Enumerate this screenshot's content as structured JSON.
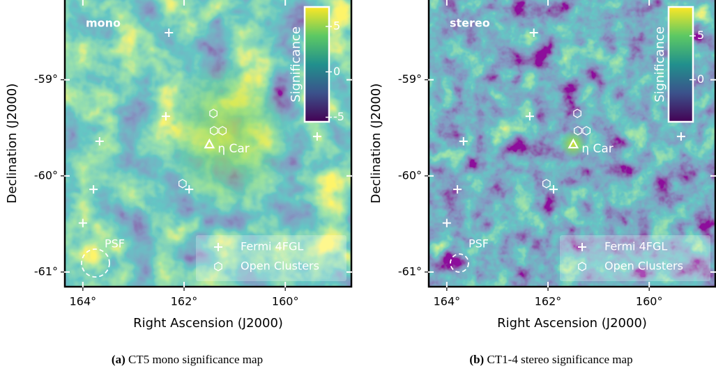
{
  "chart_data": [
    {
      "type": "scatter",
      "panel_label": "mono",
      "xlabel": "Right Ascension (J2000)",
      "ylabel": "Declination (J2000)",
      "xlim": [
        164.37,
        158.68
      ],
      "ylim": [
        -61.16,
        -58.17
      ],
      "xticks": [
        {
          "value": 164,
          "label": "164°"
        },
        {
          "value": 162,
          "label": "162°"
        },
        {
          "value": 160,
          "label": "160°"
        }
      ],
      "yticks": [
        {
          "value": -61,
          "label": "-61°"
        },
        {
          "value": -60,
          "label": "-60°"
        },
        {
          "value": -59,
          "label": "-59°"
        }
      ],
      "series": [
        {
          "name": "Fermi 4FGL",
          "marker": "plus",
          "color": "#ffffff",
          "x": [
            162.3,
            162.36,
            163.67,
            163.79,
            164.0,
            161.9,
            159.37
          ],
          "y": [
            -58.51,
            -59.38,
            -59.64,
            -60.14,
            -60.49,
            -60.14,
            -59.59
          ]
        },
        {
          "name": "Open Clusters",
          "marker": "hexagon",
          "color": "#ffffff",
          "x": [
            161.42,
            161.41,
            161.24,
            162.03
          ],
          "y": [
            -59.35,
            -59.53,
            -59.53,
            -60.08
          ]
        }
      ],
      "source": {
        "label": "η Car",
        "marker": "triangle",
        "color": "#ffffff",
        "x": 161.5,
        "y": -59.67
      },
      "psf_label": "PSF",
      "legend": "lower right",
      "colorbar": {
        "label": "Significance",
        "lim": [
          -5.5,
          7.15
        ],
        "ticks": [
          -5,
          0,
          5
        ]
      },
      "caption_label": "(a)",
      "caption": "CT5 mono significance map"
    },
    {
      "type": "scatter",
      "panel_label": "stereo",
      "xlabel": "Right Ascension (J2000)",
      "ylabel": "Declination (J2000)",
      "xlim": [
        164.37,
        158.68
      ],
      "ylim": [
        -61.16,
        -58.17
      ],
      "xticks": [
        {
          "value": 164,
          "label": "164°"
        },
        {
          "value": 162,
          "label": "162°"
        },
        {
          "value": 160,
          "label": "160°"
        }
      ],
      "yticks": [
        {
          "value": -61,
          "label": "-61°"
        },
        {
          "value": -60,
          "label": "-60°"
        },
        {
          "value": -59,
          "label": "-59°"
        }
      ],
      "series": [
        {
          "name": "Fermi 4FGL",
          "marker": "plus",
          "color": "#ffffff",
          "x": [
            162.28,
            162.36,
            163.67,
            163.79,
            164.0,
            161.89,
            159.37
          ],
          "y": [
            -58.51,
            -59.38,
            -59.64,
            -60.14,
            -60.49,
            -60.14,
            -59.59
          ]
        },
        {
          "name": "Open Clusters",
          "marker": "hexagon",
          "color": "#ffffff",
          "x": [
            161.42,
            161.41,
            161.24,
            162.03
          ],
          "y": [
            -59.35,
            -59.53,
            -59.53,
            -60.08
          ]
        }
      ],
      "source": {
        "label": "η Car",
        "marker": "triangle",
        "color": "#ffffff",
        "x": 161.5,
        "y": -59.67
      },
      "psf_label": "PSF",
      "legend": "lower right",
      "colorbar": {
        "label": "Significance",
        "lim": [
          -4.8,
          8.3
        ],
        "ticks": [
          0,
          5
        ]
      },
      "caption_label": "(b)",
      "caption": "CT1-4 stereo significance map"
    }
  ]
}
